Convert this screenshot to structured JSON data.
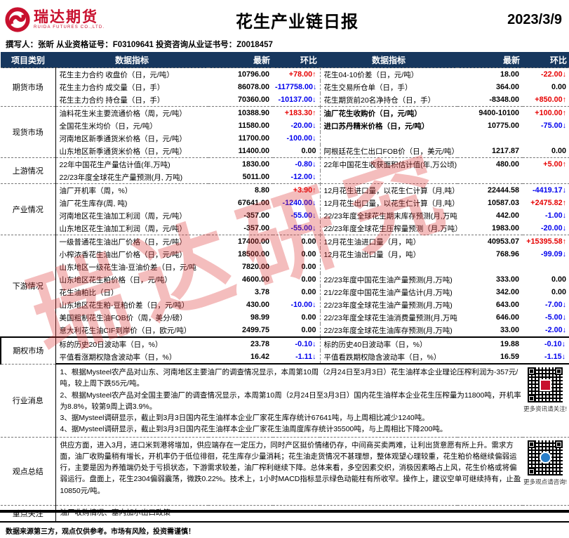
{
  "header": {
    "logo_cn": "瑞达期货",
    "logo_en": "RUIDA FUTURES CO.,LTD.",
    "title": "花生产业链日报",
    "date": "2023/3/9"
  },
  "author_line": "撰写人：张昕  从业资格证号：F03109641   投资咨询从业证书号：Z0018457",
  "watermark": "瑞达研究",
  "colors": {
    "header_bg": "#17375e",
    "up_red": "#e60000",
    "down_blue": "#0000ee",
    "brand_red": "#c8102e"
  },
  "table": {
    "columns": [
      "项目类别",
      "数据指标",
      "最新",
      "环比",
      "数据指标",
      "最新",
      "环比"
    ],
    "sections": [
      {
        "type": "data",
        "key": "futures",
        "label": "期货市场",
        "rows": [
          {
            "ll": "花生主力合约 收盘价（日，元/吨）",
            "lv": "10796.00",
            "lc": "+78.00↑",
            "lcc": "red",
            "rl": "花生04-10价差（日，元/吨）",
            "rv": "18.00",
            "rc": "-22.00↓",
            "rcc": "red"
          },
          {
            "ll": "花生主力合约 成交量（日，手）",
            "lv": "86078.00",
            "lc": "-117758.00↓",
            "lcc": "blue",
            "rl": "花生交易所仓单（日，手）",
            "rv": "364.00",
            "rc": "0.00",
            "rcc": "black"
          },
          {
            "ll": "花生主力合约 持仓量（日，手）",
            "lv": "70360.00",
            "lc": "-10137.00↓",
            "lcc": "blue",
            "rl": "花生期货前20名净持仓（日，手）",
            "rv": "-8348.00",
            "rc": "+850.00↑",
            "rcc": "red"
          }
        ]
      },
      {
        "type": "data",
        "key": "spot",
        "label": "现货市场",
        "rows": [
          {
            "ll": "油料花生米主要流通价格（周，元/吨）",
            "lv": "10388.90",
            "lc": "+183.30↑",
            "lcc": "red",
            "rl": "油厂花生收购价（日，元/吨）",
            "rb": true,
            "rv": "9400-10100",
            "rc": "+100.00↑",
            "rcc": "red"
          },
          {
            "ll": "全国花生米均价（日，元/吨）",
            "lv": "11580.00",
            "lc": "-20.00↓",
            "lcc": "blue",
            "rl": "进口苏丹精米价格（日，元/吨）",
            "rb": true,
            "rv": "10775.00",
            "rc": "-75.00↓",
            "rcc": "blue"
          },
          {
            "ll": "河南地区新季通货米价格（日，元/吨）",
            "lv": "11700.00",
            "lc": "-100.00↓",
            "lcc": "blue",
            "rl": "",
            "rv": "",
            "rc": "",
            "rcc": "black"
          },
          {
            "ll": "山东地区新季通货米价格（日，元/吨）",
            "lv": "11400.00",
            "lc": "0.00",
            "lcc": "black",
            "rl": "阿根廷花生仁出口FOB价（日，美元/吨）",
            "rv": "1217.87",
            "rc": "0.00",
            "rcc": "black"
          }
        ]
      },
      {
        "type": "data",
        "key": "upstream",
        "label": "上游情况",
        "rows": [
          {
            "ll": "22年中国花生产量估计值(年,万吨)",
            "lv": "1830.00",
            "lc": "-0.80↓",
            "lcc": "blue",
            "rl": "22年中国花生收获面积估计值(年,万公顷)",
            "rv": "480.00",
            "rc": "+5.00↑",
            "rcc": "red"
          },
          {
            "ll": "22/23年度全球花生产量预测(月, 万吨)",
            "lv": "5011.00",
            "lc": "-12.00↓",
            "lcc": "blue",
            "rl": "",
            "rv": "",
            "rc": "",
            "rcc": "black"
          }
        ]
      },
      {
        "type": "data",
        "key": "industry",
        "label": "产业情况",
        "rows": [
          {
            "ll": "油厂开机率（周，%）",
            "lv": "8.80",
            "lc": "+3.90↑",
            "lcc": "red",
            "rl": "12月花生进口量，以花生仁计算（月,吨）",
            "rv": "22444.58",
            "rc": "-4419.17↓",
            "rcc": "blue"
          },
          {
            "ll": "油厂花生库存(周, 吨)",
            "lv": "67641.00",
            "lc": "-1240.00↓",
            "lcc": "blue",
            "rl": "12月花生出口量，以花生仁计算（月,吨）",
            "rv": "10587.03",
            "rc": "+2475.82↑",
            "rcc": "red"
          },
          {
            "ll": "河南地区花生油加工利润（周，元/吨）",
            "lv": "-357.00",
            "lc": "-55.00↓",
            "lcc": "blue",
            "rl": "22/23年度全球花生期末库存预测(月,万吨)",
            "rv": "442.00",
            "rc": "-1.00↓",
            "rcc": "blue"
          },
          {
            "ll": "山东地区花生油加工利润（周，元/吨）",
            "lv": "-357.00",
            "lc": "-55.00↓",
            "lcc": "blue",
            "rl": "22/23年度全球花生压榨量预测（月,万吨）",
            "rv": "1983.00",
            "rc": "-20.00↓",
            "rcc": "blue"
          }
        ]
      },
      {
        "type": "data",
        "key": "downstream",
        "label": "下游情况",
        "rows": [
          {
            "ll": "一级普通花生油出厂价格（日，元/吨）",
            "lv": "17400.00",
            "lc": "0.00",
            "lcc": "black",
            "rl": "12月花生油进口量（月，吨）",
            "rv": "40953.07",
            "rc": "+15395.58↑",
            "rcc": "red"
          },
          {
            "ll": "小榨浓香花生油出厂价格（日，元/吨）",
            "lv": "18500.00",
            "lc": "0.00",
            "lcc": "black",
            "rl": "12月花生油出口量（月，吨）",
            "rv": "768.96",
            "rc": "-99.09↓",
            "rcc": "blue"
          },
          {
            "ll": "山东地区一级花生油-豆油价差（日，元/吨",
            "lv": "7820.00",
            "lc": "0.00",
            "lcc": "black",
            "rl": "",
            "rv": "",
            "rc": "",
            "rcc": "black"
          },
          {
            "ll": "山东地区花生粕价格（日，元/吨）",
            "lv": "4600.00",
            "lc": "0.00",
            "lcc": "black",
            "rl": "22/23年度中国花生油产量预测(月,万吨)",
            "rv": "333.00",
            "rc": "0.00",
            "rcc": "black"
          },
          {
            "ll": "花生油粕比（日）",
            "lv": "3.78",
            "lc": "0.00",
            "lcc": "black",
            "rl": "21/22年度中国花生油产量估计(月,万吨)",
            "rv": "342.00",
            "rc": "0.00",
            "rcc": "black"
          },
          {
            "ll": "山东地区花生粕-豆粕价差（日，元/吨）",
            "lv": "430.00",
            "lc": "-10.00↓",
            "lcc": "blue",
            "rl": "22/23年度全球花生油产量预测(月,万吨)",
            "rv": "643.00",
            "rc": "-7.00↓",
            "rcc": "blue"
          },
          {
            "ll": "美国粗制花生油FOB价（周，美分/磅）",
            "lv": "98.99",
            "lc": "0.00",
            "lcc": "black",
            "rl": "22/23年度全球花生油消费量预测(月,万吨)",
            "rv": "646.00",
            "rc": "-5.00↓",
            "rcc": "blue"
          },
          {
            "ll": "意大利花生油CIF到岸价（日，欧元/吨）",
            "lv": "2499.75",
            "lc": "0.00",
            "lcc": "black",
            "rl": "22/23年度全球花生油库存预测(月,万吨)",
            "rv": "33.00",
            "rc": "-2.00↓",
            "rcc": "blue"
          }
        ]
      },
      {
        "type": "data",
        "key": "options",
        "label": "期权市场",
        "frame": true,
        "rows": [
          {
            "ll": "标的历史20日波动率（日，%）",
            "lv": "23.78",
            "lc": "-0.10↓",
            "lcc": "blue",
            "rl": "标的历史40日波动率（日，%）",
            "rv": "19.88",
            "rc": "-0.10↓",
            "rcc": "blue"
          },
          {
            "ll": "平值看涨期权隐含波动率（日，%）",
            "lv": "16.42",
            "lc": "-1.11↓",
            "lcc": "blue",
            "rl": "平值看跌期权隐含波动率（日，%）",
            "rv": "16.59",
            "rc": "-1.15↓",
            "rcc": "blue"
          }
        ]
      },
      {
        "type": "text",
        "key": "news",
        "label": "行业消息",
        "qr": "red",
        "qr_caption": "更多资讯请关注!",
        "lines": [
          "1、根据Mysteel农产品对山东、河南地区主要油厂的调查情况显示，本周第10周（2月24日至3月3日）花生油样本企业理论压榨利润为-357元/吨，较上周下跌55元/吨。",
          "2、根据Mysteel农产品对全国主要油厂的调查情况显示，本周第10周（2月24日至3月3日）国内花生油样本企业花生压榨量为11800吨，开机率为8.8%，较第9周上调3.9%。",
          "3、据Mysteel调研显示，截止到3月3日国内花生油样本企业厂家花生库存统计67641吨，与上周相比减少1240吨。",
          "4、据Mysteel调研显示，截止到3月3日国内花生油样本企业厂家花生油周度库存统计35500吨，与上周相比下降200吨。"
        ]
      },
      {
        "type": "text",
        "key": "view",
        "label": "观点总结",
        "qr": "blue",
        "qr_caption": "更多观点请咨询!",
        "lines": [
          "供应方面，进入3月，进口米到港将增加，供应端存在一定压力，同时产区挺价情绪仍存，中间商买卖两难，让利出货意愿有所上升。需求方面，油厂收购量稍有增长，开机率仍于低位徘徊，花生库存少量消耗；花生油走货情况不甚理想，整体观望心理较重，花生粕价格继续偏弱运行，主要是因为养殖端仍处于亏损状态，下游需求较差，油厂榨利继续下降。总体来看，多空因素交织，消极因素略占上风，花生价格或将偏弱运行。盘面上，花生2304偏弱震荡，微跌0.22%。技术上，1小时MACD指标显示绿色动能柱有所收窄。操作上，建议空单可继续持有，止盈10850元/吨。"
        ]
      },
      {
        "type": "text",
        "key": "focus",
        "label": "重点关注",
        "lines": [
          "油厂收购情况、塞内加尔出口政策"
        ]
      }
    ]
  },
  "footer": "数据来源第三方，观点仅供参考。市场有风险，投资需谨慎！"
}
